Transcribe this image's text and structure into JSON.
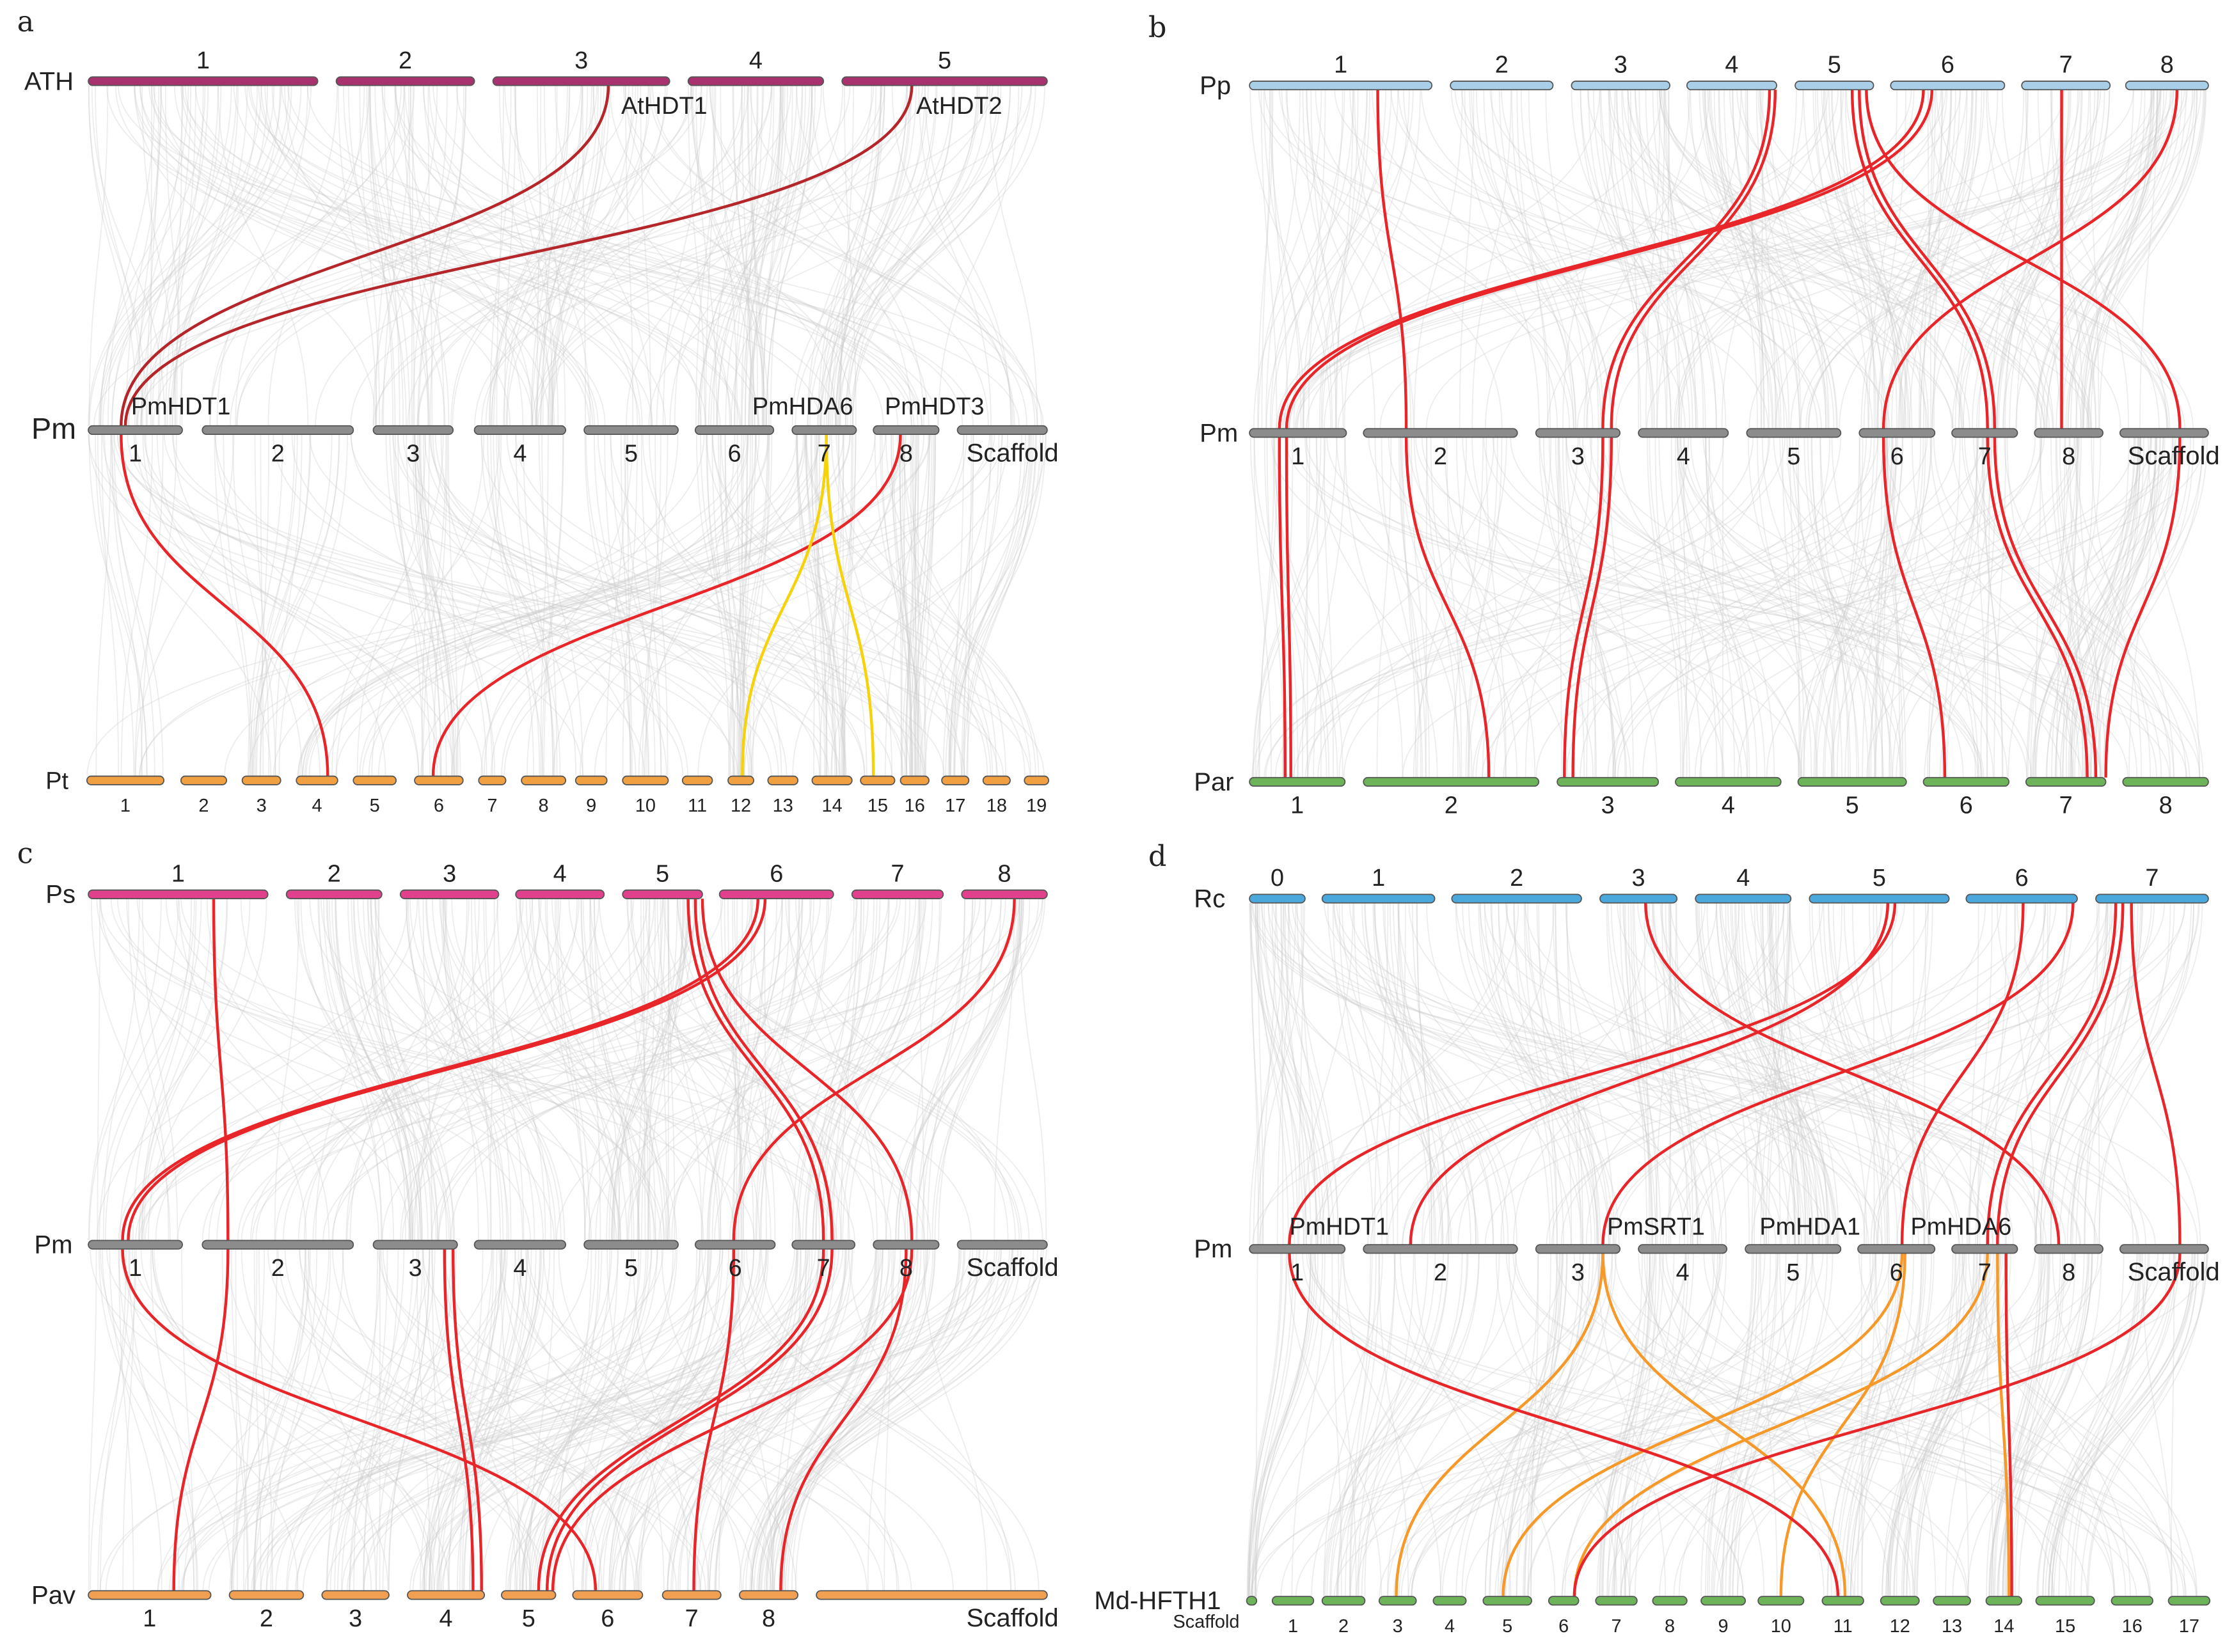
{
  "panels": [
    {
      "letter": "a",
      "tracks": [
        {
          "name": "ATH",
          "color": "#a8326e",
          "chroms": [
            "1",
            "2",
            "3",
            "4",
            "5"
          ]
        },
        {
          "name": "Pm",
          "color": "#8c8c8c",
          "chroms": [
            "1",
            "2",
            "3",
            "4",
            "5",
            "6",
            "7",
            "8",
            "Scaffold"
          ]
        },
        {
          "name": "Pt",
          "color": "#f0a040",
          "chroms": [
            "1",
            "2",
            "3",
            "4",
            "5",
            "6",
            "7",
            "8",
            "9",
            "10",
            "11",
            "12",
            "13",
            "14",
            "15",
            "16",
            "17",
            "18",
            "19"
          ]
        }
      ],
      "genes": [
        "AtHDT1",
        "AtHDT2",
        "PmHDT1",
        "PmHDA6",
        "PmHDT3"
      ]
    },
    {
      "letter": "b",
      "tracks": [
        {
          "name": "Pp",
          "color": "#a9cfe8",
          "chroms": [
            "1",
            "2",
            "3",
            "4",
            "5",
            "6",
            "7",
            "8"
          ]
        },
        {
          "name": "Pm",
          "color": "#8c8c8c",
          "chroms": [
            "1",
            "2",
            "3",
            "4",
            "5",
            "6",
            "7",
            "8",
            "Scaffold"
          ]
        },
        {
          "name": "Par",
          "color": "#6db35a",
          "chroms": [
            "1",
            "2",
            "3",
            "4",
            "5",
            "6",
            "7",
            "8"
          ]
        }
      ],
      "genes": []
    },
    {
      "letter": "c",
      "tracks": [
        {
          "name": "Ps",
          "color": "#e0408c",
          "chroms": [
            "1",
            "2",
            "3",
            "4",
            "5",
            "6",
            "7",
            "8"
          ]
        },
        {
          "name": "Pm",
          "color": "#8c8c8c",
          "chroms": [
            "1",
            "2",
            "3",
            "4",
            "5",
            "6",
            "7",
            "8",
            "Scaffold"
          ]
        },
        {
          "name": "Pav",
          "color": "#f0a050",
          "chroms": [
            "1",
            "2",
            "3",
            "4",
            "5",
            "6",
            "7",
            "8",
            "Scaffold"
          ]
        }
      ],
      "genes": []
    },
    {
      "letter": "d",
      "tracks": [
        {
          "name": "Rc",
          "color": "#4aa8dc",
          "chroms": [
            "0",
            "1",
            "2",
            "3",
            "4",
            "5",
            "6",
            "7"
          ]
        },
        {
          "name": "Pm",
          "color": "#8c8c8c",
          "chroms": [
            "1",
            "2",
            "3",
            "4",
            "5",
            "6",
            "7",
            "8",
            "Scaffold"
          ]
        },
        {
          "name": "Md-HFTH1",
          "color": "#6db35a",
          "chroms": [
            "Scaffold",
            "1",
            "2",
            "3",
            "4",
            "5",
            "6",
            "7",
            "8",
            "9",
            "10",
            "11",
            "12",
            "13",
            "14",
            "15",
            "16",
            "17"
          ]
        }
      ],
      "genes": [
        "PmHDT1",
        "PmSRT1",
        "PmHDA1",
        "PmHDA6"
      ]
    }
  ],
  "colors": {
    "background_link": "#cccccc",
    "highlight_red": "#e8262a",
    "highlight_darkred": "#b5262a",
    "highlight_yellow": "#f5d20a",
    "highlight_orange": "#f5992a"
  }
}
